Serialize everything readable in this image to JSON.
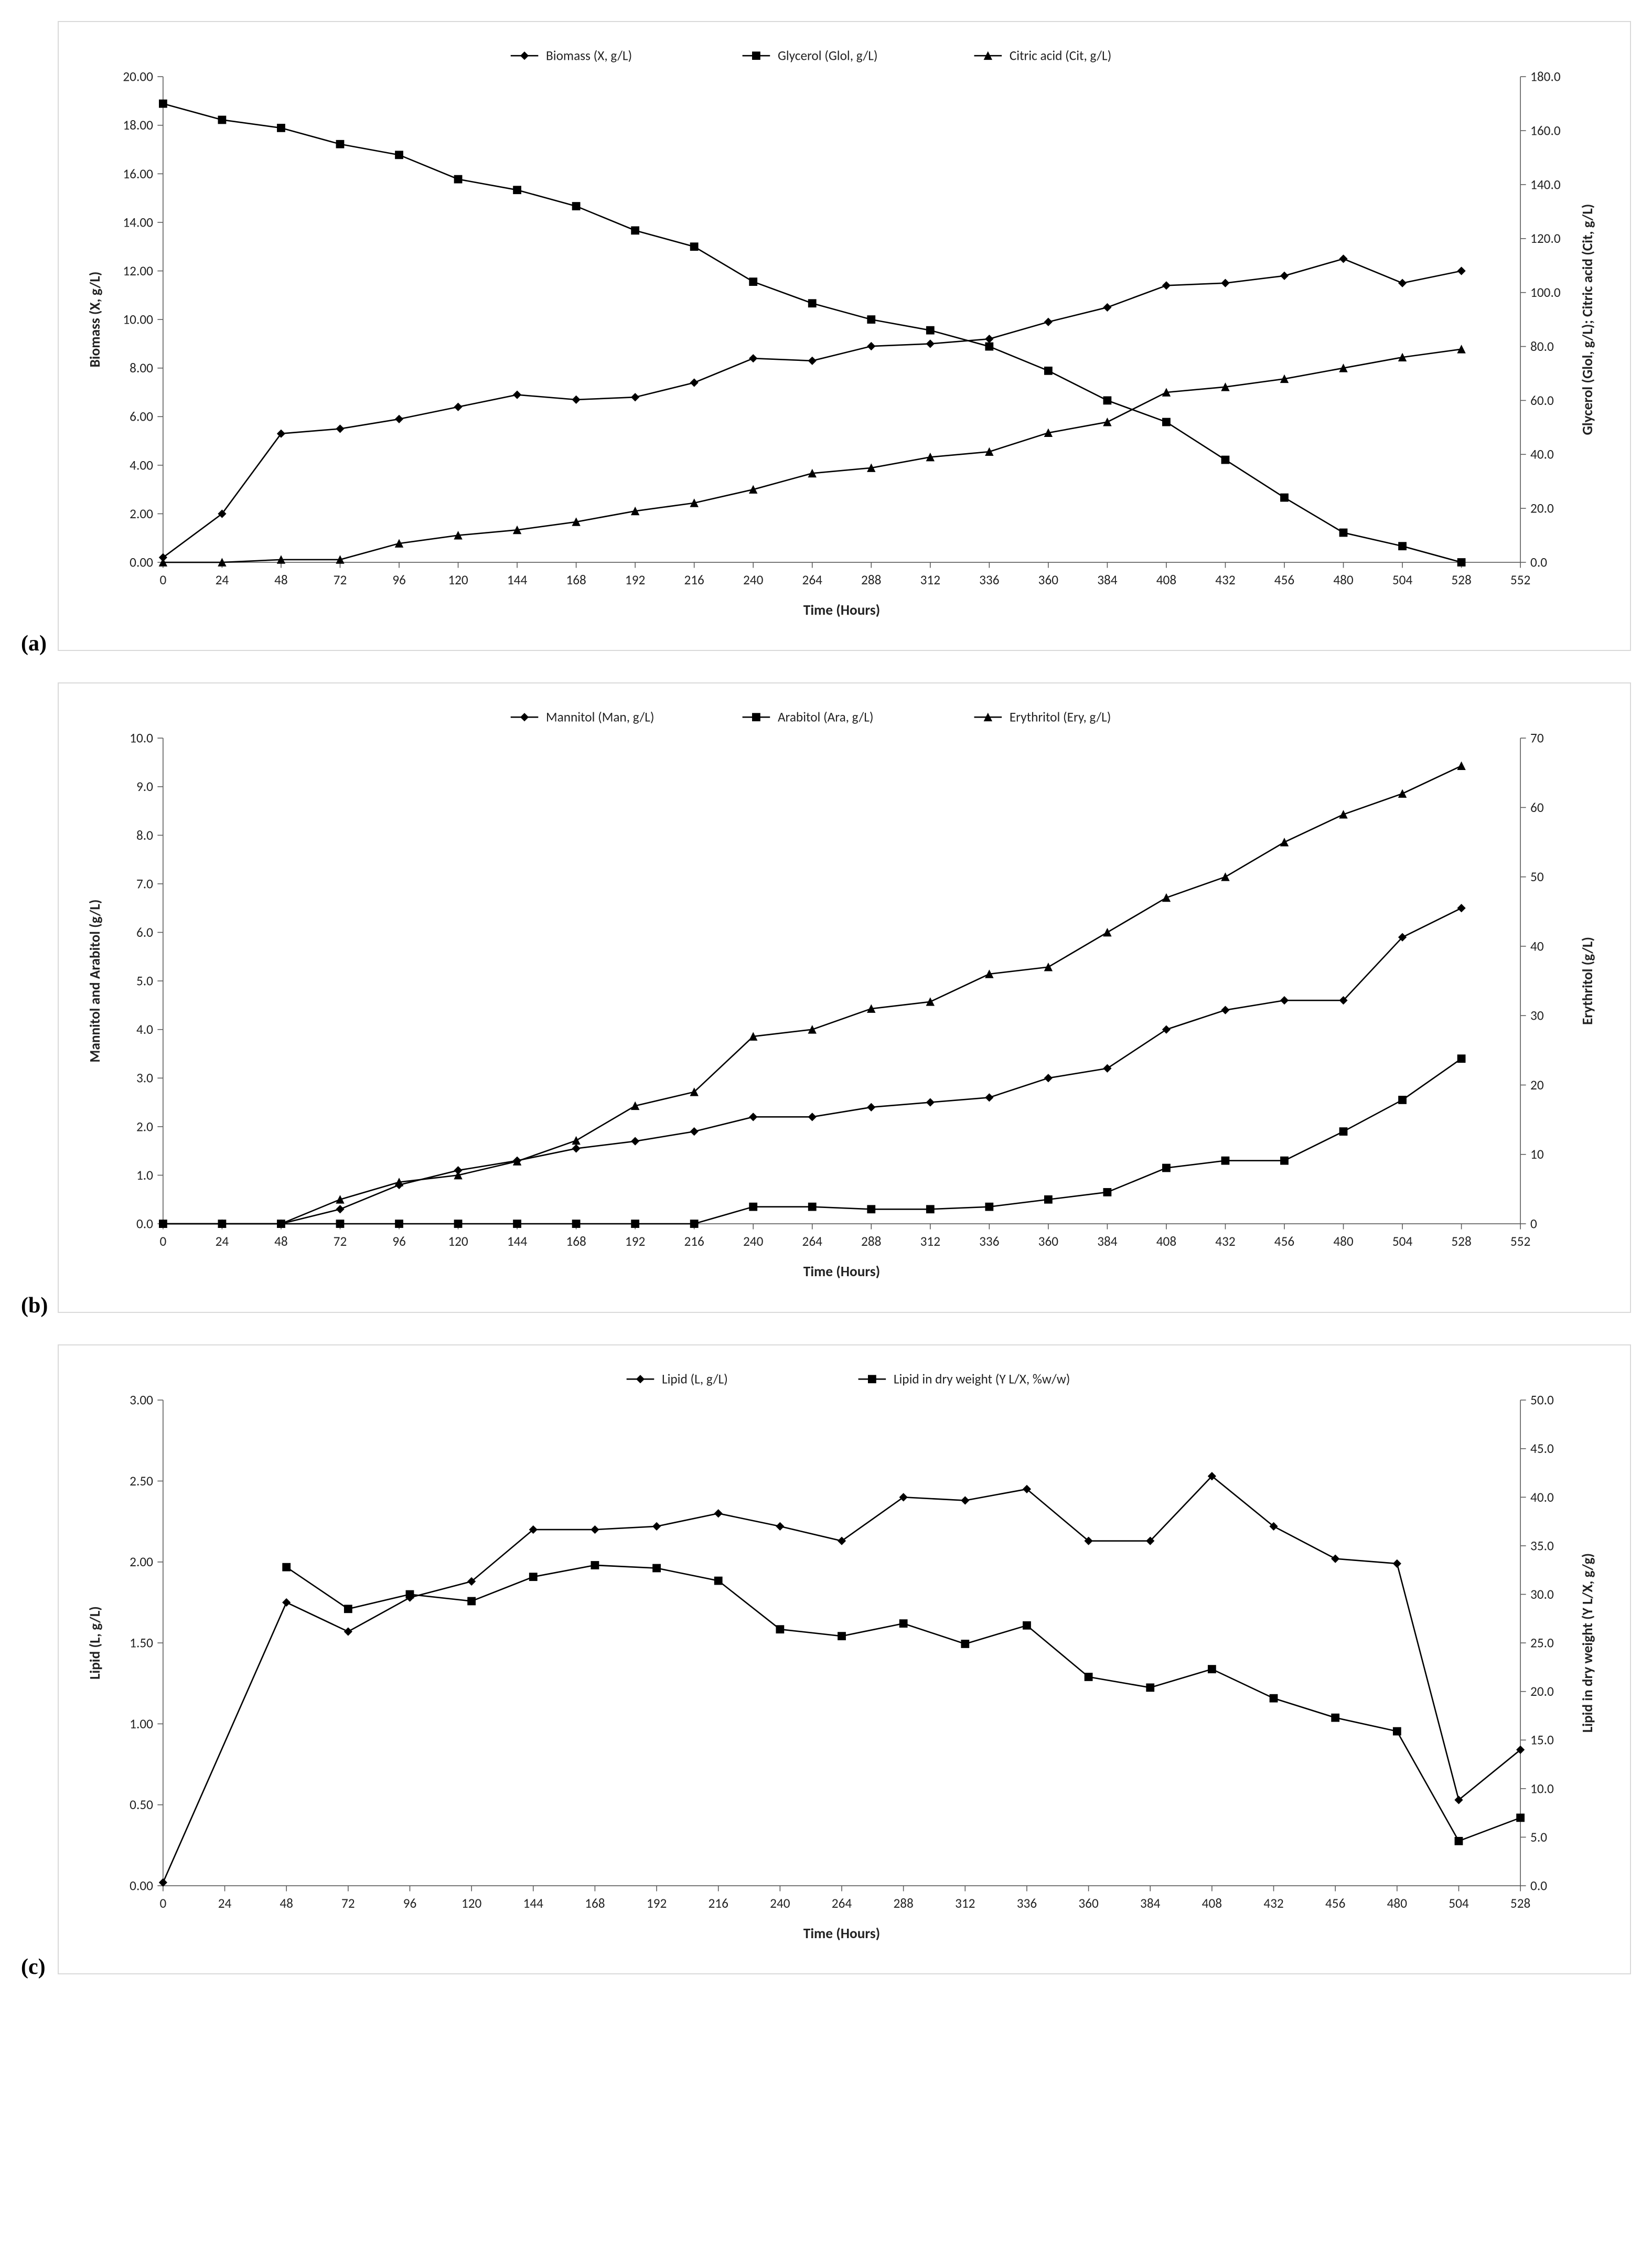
{
  "global": {
    "page_bg": "#ffffff",
    "chart_border_color": "#d9d9d9",
    "axis_color": "#595959",
    "line_color": "#000000",
    "tick_fontsize": 24,
    "axis_title_fontsize": 26,
    "axis_title_fontweight": "bold",
    "legend_fontsize": 24,
    "line_width": 2.5,
    "marker_size": 7
  },
  "panel_a": {
    "label": "(a)",
    "type": "line",
    "x_label": "Time (Hours)",
    "y_left_label": "Biomass (X, g/L)",
    "y_right_label": "Glycerol (Glol, g/L); Citric acid (Cit, g/L)",
    "x_ticks": [
      0,
      24,
      48,
      72,
      96,
      120,
      144,
      168,
      192,
      216,
      240,
      264,
      288,
      312,
      336,
      360,
      384,
      408,
      432,
      456,
      480,
      504,
      528,
      552
    ],
    "y_left_ticks": [
      0.0,
      2.0,
      4.0,
      6.0,
      8.0,
      10.0,
      12.0,
      14.0,
      16.0,
      18.0,
      20.0
    ],
    "y_left_decimals": 2,
    "y_right_ticks": [
      0.0,
      20.0,
      40.0,
      60.0,
      80.0,
      100.0,
      120.0,
      140.0,
      160.0,
      180.0
    ],
    "y_right_decimals": 1,
    "xlim": [
      0,
      552
    ],
    "ylim_left": [
      0,
      20
    ],
    "ylim_right": [
      0,
      180
    ],
    "legend": [
      {
        "label": "Biomass (X, g/L)",
        "marker": "diamond"
      },
      {
        "label": "Glycerol (Glol, g/L)",
        "marker": "square"
      },
      {
        "label": "Citric acid (Cit, g/L)",
        "marker": "triangle"
      }
    ],
    "series": [
      {
        "name": "Biomass",
        "marker": "diamond",
        "axis": "left",
        "x": [
          0,
          24,
          48,
          72,
          96,
          120,
          144,
          168,
          192,
          216,
          240,
          264,
          288,
          312,
          336,
          360,
          384,
          408,
          432,
          456,
          480,
          504,
          528
        ],
        "y": [
          0.2,
          2.0,
          5.3,
          5.5,
          5.9,
          6.4,
          6.9,
          6.7,
          6.8,
          7.4,
          8.4,
          8.3,
          8.9,
          9.0,
          9.2,
          9.9,
          10.5,
          11.4,
          11.5,
          11.8,
          12.5,
          11.5,
          12.0
        ]
      },
      {
        "name": "Glycerol",
        "marker": "square",
        "axis": "right",
        "x": [
          0,
          24,
          48,
          72,
          96,
          120,
          144,
          168,
          192,
          216,
          240,
          264,
          288,
          312,
          336,
          360,
          384,
          408,
          432,
          456,
          480,
          504,
          528
        ],
        "y": [
          170,
          164,
          161,
          155,
          151,
          142,
          138,
          132,
          123,
          117,
          104,
          96,
          90,
          86,
          80,
          71,
          60,
          52,
          38,
          24,
          11,
          6,
          0
        ]
      },
      {
        "name": "Citric",
        "marker": "triangle",
        "axis": "right",
        "x": [
          0,
          24,
          48,
          72,
          96,
          120,
          144,
          168,
          192,
          216,
          240,
          264,
          288,
          312,
          336,
          360,
          384,
          408,
          432,
          456,
          480,
          504,
          528
        ],
        "y": [
          0,
          0,
          1,
          1,
          7,
          10,
          12,
          15,
          19,
          22,
          27,
          33,
          35,
          39,
          41,
          48,
          52,
          63,
          65,
          68,
          72,
          76,
          79
        ]
      }
    ]
  },
  "panel_b": {
    "label": "(b)",
    "type": "line",
    "x_label": "Time (Hours)",
    "y_left_label": "Mannitol and Arabitol (g/L)",
    "y_right_label": "Erythritol (g/L)",
    "x_ticks": [
      0,
      24,
      48,
      72,
      96,
      120,
      144,
      168,
      192,
      216,
      240,
      264,
      288,
      312,
      336,
      360,
      384,
      408,
      432,
      456,
      480,
      504,
      528,
      552
    ],
    "y_left_ticks": [
      0.0,
      1.0,
      2.0,
      3.0,
      4.0,
      5.0,
      6.0,
      7.0,
      8.0,
      9.0,
      10.0
    ],
    "y_left_decimals": 1,
    "y_right_ticks": [
      0,
      10,
      20,
      30,
      40,
      50,
      60,
      70
    ],
    "y_right_decimals": 0,
    "xlim": [
      0,
      552
    ],
    "ylim_left": [
      0,
      10
    ],
    "ylim_right": [
      0,
      70
    ],
    "legend": [
      {
        "label": "Mannitol (Man, g/L)",
        "marker": "diamond"
      },
      {
        "label": "Arabitol (Ara, g/L)",
        "marker": "square"
      },
      {
        "label": "Erythritol (Ery, g/L)",
        "marker": "triangle"
      }
    ],
    "series": [
      {
        "name": "Mannitol",
        "marker": "diamond",
        "axis": "left",
        "x": [
          0,
          24,
          48,
          72,
          96,
          120,
          144,
          168,
          192,
          216,
          240,
          264,
          288,
          312,
          336,
          360,
          384,
          408,
          432,
          456,
          480,
          504,
          528
        ],
        "y": [
          0,
          0,
          0,
          0.3,
          0.8,
          1.1,
          1.3,
          1.55,
          1.7,
          1.9,
          2.2,
          2.2,
          2.4,
          2.5,
          2.6,
          3.0,
          3.2,
          4.0,
          4.4,
          4.6,
          4.6,
          5.9,
          6.5
        ]
      },
      {
        "name": "Arabitol",
        "marker": "square",
        "axis": "left",
        "x": [
          0,
          24,
          48,
          72,
          96,
          120,
          144,
          168,
          192,
          216,
          240,
          264,
          288,
          312,
          336,
          360,
          384,
          408,
          432,
          456,
          480,
          504,
          528
        ],
        "y": [
          0,
          0,
          0,
          0,
          0,
          0,
          0,
          0,
          0,
          0,
          0.35,
          0.35,
          0.3,
          0.3,
          0.35,
          0.5,
          0.65,
          1.15,
          1.3,
          1.3,
          1.9,
          2.55,
          3.4
        ]
      },
      {
        "name": "Erythritol",
        "marker": "triangle",
        "axis": "right",
        "x": [
          0,
          24,
          48,
          72,
          96,
          120,
          144,
          168,
          192,
          216,
          240,
          264,
          288,
          312,
          336,
          360,
          384,
          408,
          432,
          456,
          480,
          504,
          528
        ],
        "y": [
          0,
          0,
          0,
          3.5,
          6,
          7,
          9,
          12,
          17,
          19,
          27,
          28,
          31,
          32,
          36,
          37,
          42,
          47,
          50,
          55,
          59,
          62,
          66
        ]
      }
    ]
  },
  "panel_c": {
    "label": "(c)",
    "type": "line",
    "x_label": "Time (Hours)",
    "y_left_label": "Lipid (L, g/L)",
    "y_right_label": "Lipid in dry weight (Y L/X, g/g)",
    "x_ticks": [
      0,
      24,
      48,
      72,
      96,
      120,
      144,
      168,
      192,
      216,
      240,
      264,
      288,
      312,
      336,
      360,
      384,
      408,
      432,
      456,
      480,
      504,
      528
    ],
    "y_left_ticks": [
      0.0,
      0.5,
      1.0,
      1.5,
      2.0,
      2.5,
      3.0
    ],
    "y_left_decimals": 2,
    "y_right_ticks": [
      0.0,
      5.0,
      10.0,
      15.0,
      20.0,
      25.0,
      30.0,
      35.0,
      40.0,
      45.0,
      50.0
    ],
    "y_right_decimals": 1,
    "xlim": [
      0,
      528
    ],
    "ylim_left": [
      0,
      3
    ],
    "ylim_right": [
      0,
      50
    ],
    "legend": [
      {
        "label": "Lipid (L, g/L)",
        "marker": "diamond"
      },
      {
        "label": "Lipid in dry weight (Y L/X, %w/w)",
        "marker": "square"
      }
    ],
    "series": [
      {
        "name": "Lipid",
        "marker": "diamond",
        "axis": "left",
        "x": [
          0,
          48,
          72,
          96,
          120,
          144,
          168,
          192,
          216,
          240,
          264,
          288,
          312,
          336,
          360,
          384,
          408,
          432,
          456,
          480,
          504,
          528
        ],
        "y": [
          0.02,
          1.75,
          1.57,
          1.78,
          1.88,
          2.2,
          2.2,
          2.22,
          2.3,
          2.22,
          2.13,
          2.4,
          2.38,
          2.45,
          2.13,
          2.13,
          2.53,
          2.22,
          2.02,
          1.99,
          0.53,
          0.84
        ]
      },
      {
        "name": "LipidDry",
        "marker": "square",
        "axis": "right",
        "x": [
          48,
          72,
          96,
          120,
          144,
          168,
          192,
          216,
          240,
          264,
          288,
          312,
          336,
          360,
          384,
          408,
          432,
          456,
          480,
          504,
          528
        ],
        "y": [
          32.8,
          28.5,
          30.0,
          29.3,
          31.8,
          33.0,
          32.7,
          31.4,
          26.4,
          25.7,
          27.0,
          24.9,
          26.8,
          21.5,
          20.4,
          22.3,
          19.3,
          17.3,
          15.9,
          4.6,
          7.0
        ]
      }
    ]
  }
}
